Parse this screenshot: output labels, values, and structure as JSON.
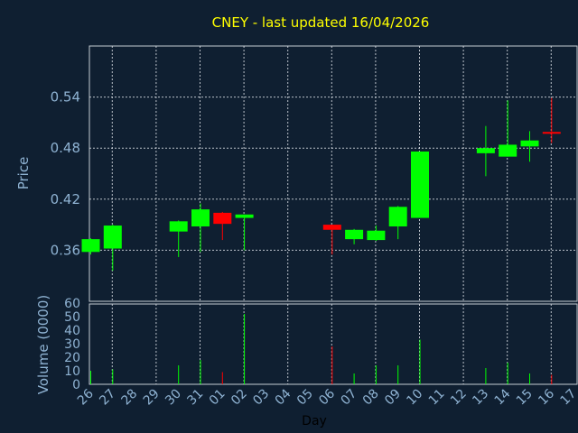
{
  "chart_data": {
    "type": "candlestick",
    "title": "CNEY - last updated 16/04/2026",
    "xlabel": "Day",
    "ylabel": "Price",
    "volume_label": "Volume (0000)",
    "grid": true,
    "colors": {
      "up": "#00ff00",
      "down": "#ff0000",
      "title": "#ffff00",
      "axis_text": "#8fb3d3",
      "background": "#0f1f31"
    },
    "x_ticks": [
      "26",
      "27",
      "28",
      "29",
      "30",
      "31",
      "01",
      "02",
      "03",
      "04",
      "05",
      "06",
      "07",
      "08",
      "09",
      "10",
      "11",
      "12",
      "13",
      "14",
      "15",
      "16",
      "17"
    ],
    "y_ticks": [
      "0.36",
      "0.42",
      "0.48",
      "0.54"
    ],
    "y_range": [
      0.3,
      0.6
    ],
    "volume_ticks": [
      "0",
      "10",
      "20",
      "30",
      "40",
      "50",
      "60"
    ],
    "volume_range": [
      0,
      60
    ],
    "candles": [
      {
        "day": "26",
        "open": 0.358,
        "high": 0.374,
        "low": 0.355,
        "close": 0.373,
        "volume": 10,
        "color": "up"
      },
      {
        "day": "27",
        "open": 0.362,
        "high": 0.39,
        "low": 0.336,
        "close": 0.389,
        "volume": 11,
        "color": "up"
      },
      {
        "day": "30",
        "open": 0.382,
        "high": 0.395,
        "low": 0.352,
        "close": 0.394,
        "volume": 14,
        "color": "up"
      },
      {
        "day": "31",
        "open": 0.388,
        "high": 0.415,
        "low": 0.358,
        "close": 0.408,
        "volume": 18,
        "color": "up"
      },
      {
        "day": "01",
        "open": 0.404,
        "high": 0.405,
        "low": 0.372,
        "close": 0.391,
        "volume": 9,
        "color": "down"
      },
      {
        "day": "02",
        "open": 0.398,
        "high": 0.402,
        "low": 0.36,
        "close": 0.402,
        "volume": 52,
        "color": "up"
      },
      {
        "day": "06",
        "open": 0.39,
        "high": 0.39,
        "low": 0.355,
        "close": 0.384,
        "volume": 28,
        "color": "down"
      },
      {
        "day": "07",
        "open": 0.373,
        "high": 0.385,
        "low": 0.367,
        "close": 0.384,
        "volume": 8,
        "color": "up"
      },
      {
        "day": "08",
        "open": 0.372,
        "high": 0.389,
        "low": 0.371,
        "close": 0.383,
        "volume": 14,
        "color": "up"
      },
      {
        "day": "09",
        "open": 0.388,
        "high": 0.412,
        "low": 0.373,
        "close": 0.411,
        "volume": 14,
        "color": "up"
      },
      {
        "day": "10",
        "open": 0.398,
        "high": 0.476,
        "low": 0.398,
        "close": 0.476,
        "volume": 33,
        "color": "up"
      },
      {
        "day": "13",
        "open": 0.474,
        "high": 0.506,
        "low": 0.447,
        "close": 0.48,
        "volume": 12,
        "color": "up"
      },
      {
        "day": "14",
        "open": 0.47,
        "high": 0.536,
        "low": 0.47,
        "close": 0.484,
        "volume": 16,
        "color": "up"
      },
      {
        "day": "15",
        "open": 0.482,
        "high": 0.5,
        "low": 0.464,
        "close": 0.489,
        "volume": 8,
        "color": "up"
      },
      {
        "day": "16",
        "open": 0.499,
        "high": 0.539,
        "low": 0.486,
        "close": 0.499,
        "volume": 7,
        "color": "down"
      }
    ]
  }
}
